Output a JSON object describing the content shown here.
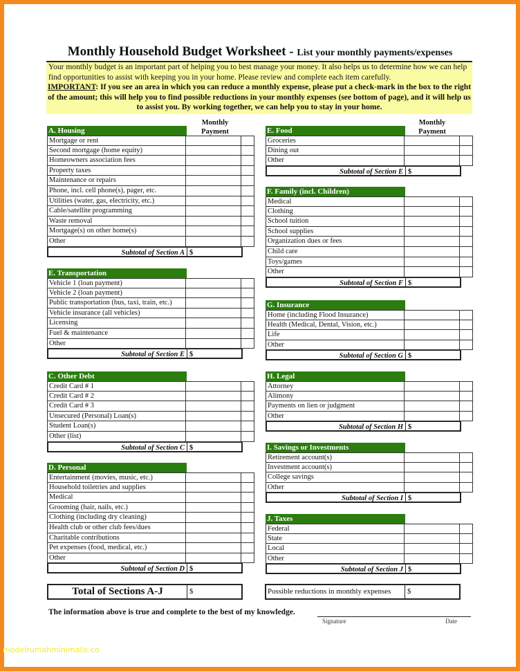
{
  "title": {
    "main": "Monthly Household Budget Worksheet - ",
    "sub": "List your monthly payments/expenses"
  },
  "intro": {
    "text": "Your monthly budget is an important part of helping you to best manage your money. It also helps us to determine how we can help find opportunities to assist with keeping you in your home. Please review and complete each item carefully.",
    "important_label": "IMPORTANT",
    "important_text": ": If you see an area in which you can reduce a monthly expense, please put a check-mark in the box to the right of the amount; this will help you to find possible reductions in your monthly expenses (see bottom of page), and it will help us to assist you. By working together, we can help you to stay in your home."
  },
  "column_header": "Monthly Payment",
  "currency_symbol": "$",
  "colors": {
    "section_header": "#2b7d10",
    "intro_bg": "#fbfba3",
    "frame": "#f58a1f"
  },
  "sections": [
    {
      "title": "A. Housing",
      "items": [
        "Mortgage or rent",
        "Second mortgage (home equity)",
        "Homeowners association fees",
        "Property taxes",
        "Maintenance or repairs",
        "Phone, incl. cell phone(s), pager, etc.",
        "Utilities (water, gas, electricity, etc.)",
        "Cable/satellite programming",
        "Waste removal",
        "Mortgage(s) on other home(s)",
        "Other"
      ],
      "subtotal": "Subtotal of Section A"
    },
    {
      "title": "E. Transportation",
      "items": [
        "Vehicle 1 (loan payment)",
        "Vehicle 2 (loan payment)",
        "Public transportation (bus, taxi, train, etc.)",
        "Vehicle insurance (all vehicles)",
        "Licensing",
        "Fuel & maintenance",
        "Other"
      ],
      "subtotal": "Subtotal of Section E"
    },
    {
      "title": "C. Other Debt",
      "items": [
        "Credit Card # 1",
        "Credit Card # 2",
        "Credit Card # 3",
        "Unsecured (Personal) Loan(s)",
        "Student Loan(s)",
        "Other (list)"
      ],
      "subtotal": "Subtotal of Section C"
    },
    {
      "title": "D. Personal",
      "items": [
        "Entertainment (movies, music, etc.)",
        "Household toiletries and supplies",
        "Medical",
        "Grooming (hair, nails, etc.)",
        "Clothing (including dry cleaning)",
        "Health club or other club fees/dues",
        "Charitable contributions",
        "Pet expenses (food, medical, etc.)",
        "Other"
      ],
      "subtotal": "Subtotal of Section D"
    },
    {
      "title": "E. Food",
      "items": [
        "Groceries",
        "Dining out",
        "Other"
      ],
      "subtotal": "Subtotal of Section E"
    },
    {
      "title": "F. Family (incl. Children)",
      "items": [
        "Medical",
        "Clothing",
        "School tuition",
        "School supplies",
        "Organization dues or fees",
        "Child care",
        "Toys/games",
        "Other"
      ],
      "subtotal": "Subtotal of Section F"
    },
    {
      "title": "G. Insurance",
      "items": [
        "Home (including Flood Insurance)",
        "Health (Medical, Dental, Vision, etc.)",
        "Life",
        "Other"
      ],
      "subtotal": "Subtotal of Section G"
    },
    {
      "title": "H. Legal",
      "items": [
        "Attorney",
        "Alimony",
        "Payments on lien or judgment",
        "Other"
      ],
      "subtotal": "Subtotal of Section H"
    },
    {
      "title": "I. Savings or Investments",
      "items": [
        "Retirement account(s)",
        "Investment account(s)",
        "College savings",
        "Other"
      ],
      "subtotal": "Subtotal of Section I"
    },
    {
      "title": "J. Taxes",
      "items": [
        "Federal",
        "State",
        "Local",
        "Other"
      ],
      "subtotal": "Subtotal of Section J"
    }
  ],
  "totals": {
    "total_label": "Total of Sections A-J",
    "reductions_label": "Possible reductions in monthly expenses"
  },
  "certification": "The information above is true and complete to the best of my knowledge.",
  "signature_label": "Signature",
  "date_label": "Date",
  "watermark": "modelrumahminimalis.co"
}
